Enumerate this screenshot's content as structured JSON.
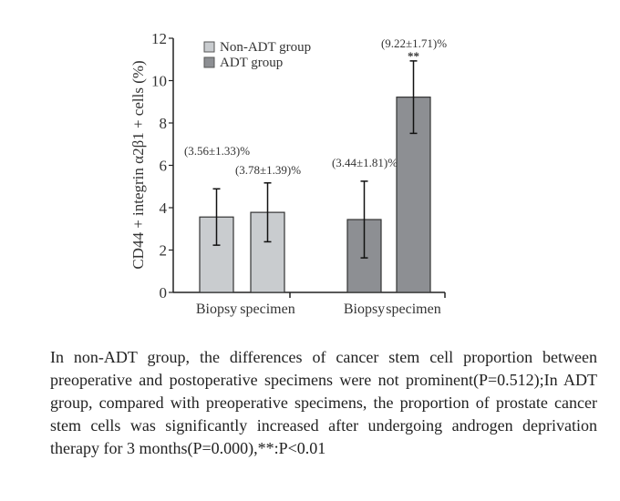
{
  "chart_data": {
    "type": "bar",
    "ylabel": "CD44 + integrin α2β1 + cells (%)",
    "ylim": [
      0,
      12
    ],
    "yticks": [
      0,
      2,
      4,
      6,
      8,
      10,
      12
    ],
    "legend_position": "top-left",
    "series": [
      {
        "name": "Non-ADT group",
        "color": "#c9cccf"
      },
      {
        "name": "ADT group",
        "color": "#8d8f93"
      }
    ],
    "bars": [
      {
        "group": "Non-ADT group",
        "category": "Biopsy",
        "value": 3.56,
        "sd": 1.33,
        "label": "(3.56±1.33)%",
        "sig": ""
      },
      {
        "group": "Non-ADT group",
        "category": "specimen",
        "value": 3.78,
        "sd": 1.39,
        "label": "(3.78±1.39)%",
        "sig": ""
      },
      {
        "group": "ADT group",
        "category": "Biopsy",
        "value": 3.44,
        "sd": 1.81,
        "label": "(3.44±1.81)%",
        "sig": ""
      },
      {
        "group": "ADT group",
        "category": "specimen",
        "value": 9.22,
        "sd": 1.71,
        "label": "(9.22±1.71)%",
        "sig": "**"
      }
    ]
  },
  "caption": "In non-ADT group, the differences of cancer stem cell proportion between preoperative and postoperative specimens were not prominent(P=0.512);In ADT group, compared with preoperative specimens, the proportion of prostate cancer stem cells was significantly increased after undergoing androgen deprivation therapy for 3 months(P=0.000),**:P<0.01"
}
